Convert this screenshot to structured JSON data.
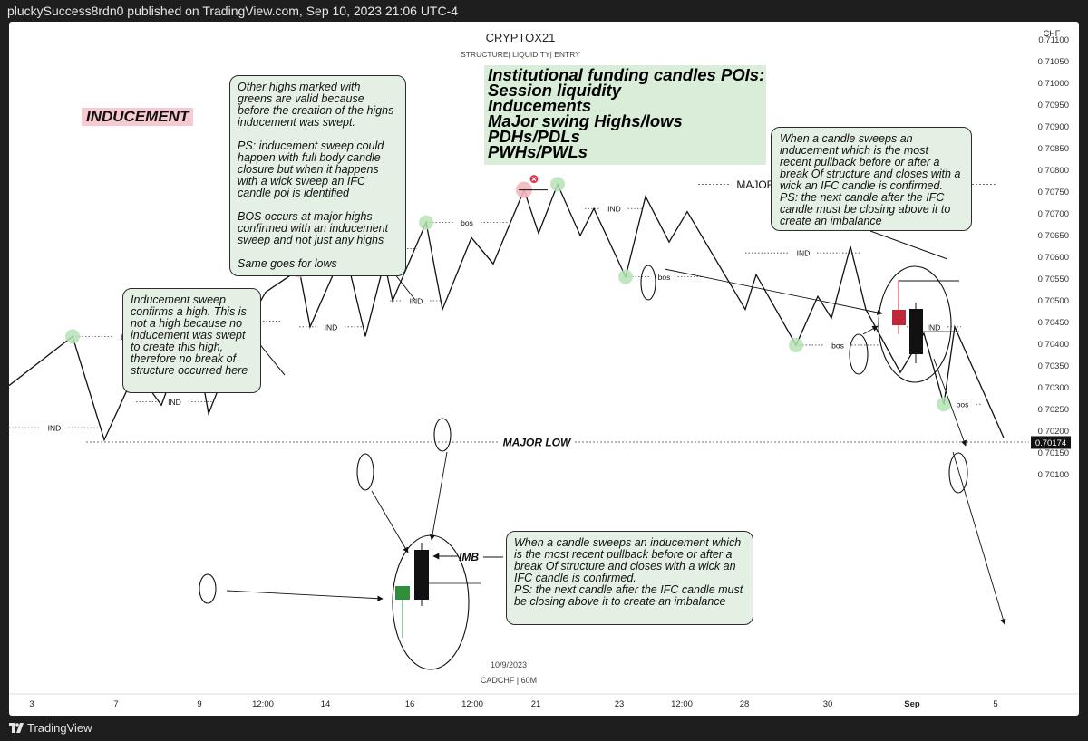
{
  "publish_line": "pluckySuccess8rdn0 published on TradingView.com, Sep 10, 2023 21:06 UTC-4",
  "footer": {
    "brand": "TradingView"
  },
  "chart_data": {
    "type": "line",
    "title": "CRYPTOX21",
    "subtitle": "STRUCTURE| LIQUIDITY| ENTRY",
    "symbol_label": "CADCHF | 60M",
    "date_label": "10/9/2023",
    "currency": "CHF",
    "last_price_label": "0.70174",
    "ylim": [
      0.70075,
      0.71125
    ],
    "y_ticks": [
      "0.71100",
      "0.71050",
      "0.71000",
      "0.70950",
      "0.70900",
      "0.70850",
      "0.70800",
      "0.70750",
      "0.70700",
      "0.70650",
      "0.70600",
      "0.70550",
      "0.70500",
      "0.70450",
      "0.70400",
      "0.70350",
      "0.70300",
      "0.70250",
      "0.70200",
      "0.70150",
      "0.70100"
    ],
    "x_ticks": [
      "3",
      "7",
      "9",
      "12:00",
      "14",
      "16",
      "12:00",
      "21",
      "23",
      "12:00",
      "28",
      "30",
      "Sep",
      "5"
    ],
    "series": [
      {
        "values": [
          {
            "x": 0,
            "y": 0.70305
          },
          {
            "x": 70,
            "y": 0.70418
          },
          {
            "x": 105,
            "y": 0.7018
          },
          {
            "x": 140,
            "y": 0.7034
          },
          {
            "x": 168,
            "y": 0.7026
          },
          {
            "x": 202,
            "y": 0.70453
          },
          {
            "x": 220,
            "y": 0.7024
          },
          {
            "x": 250,
            "y": 0.70398
          },
          {
            "x": 283,
            "y": 0.7052
          },
          {
            "x": 320,
            "y": 0.70572
          },
          {
            "x": 332,
            "y": 0.7044
          },
          {
            "x": 370,
            "y": 0.7062
          },
          {
            "x": 393,
            "y": 0.70418
          },
          {
            "x": 414,
            "y": 0.7059
          },
          {
            "x": 423,
            "y": 0.705
          },
          {
            "x": 460,
            "y": 0.7068
          },
          {
            "x": 478,
            "y": 0.7048
          },
          {
            "x": 510,
            "y": 0.70645
          },
          {
            "x": 534,
            "y": 0.70585
          },
          {
            "x": 568,
            "y": 0.70755
          },
          {
            "x": 584,
            "y": 0.70655
          },
          {
            "x": 605,
            "y": 0.70768
          },
          {
            "x": 630,
            "y": 0.7065
          },
          {
            "x": 645,
            "y": 0.70712
          },
          {
            "x": 680,
            "y": 0.70555
          },
          {
            "x": 702,
            "y": 0.7074
          },
          {
            "x": 728,
            "y": 0.70635
          },
          {
            "x": 748,
            "y": 0.70705
          },
          {
            "x": 812,
            "y": 0.7048
          },
          {
            "x": 824,
            "y": 0.7056
          },
          {
            "x": 868,
            "y": 0.70398
          },
          {
            "x": 892,
            "y": 0.7051
          },
          {
            "x": 907,
            "y": 0.7046
          },
          {
            "x": 928,
            "y": 0.70625
          },
          {
            "x": 945,
            "y": 0.7048
          },
          {
            "x": 983,
            "y": 0.70335
          },
          {
            "x": 1009,
            "y": 0.70425
          },
          {
            "x": 1031,
            "y": 0.70262
          },
          {
            "x": 1043,
            "y": 0.7044
          },
          {
            "x": 1097,
            "y": 0.70185
          }
        ]
      }
    ],
    "swing_points": [
      {
        "x": 70,
        "y": 0.70418,
        "kind": "valid"
      },
      {
        "x": 202,
        "y": 0.70453,
        "kind": "valid"
      },
      {
        "x": 320,
        "y": 0.70572,
        "kind": "invalid"
      },
      {
        "x": 370,
        "y": 0.7062,
        "kind": "valid"
      },
      {
        "x": 460,
        "y": 0.7068,
        "kind": "valid"
      },
      {
        "x": 568,
        "y": 0.70755,
        "kind": "invalid"
      },
      {
        "x": 605,
        "y": 0.70768,
        "kind": "valid"
      },
      {
        "x": 680,
        "y": 0.70555,
        "kind": "valid"
      },
      {
        "x": 868,
        "y": 0.70398,
        "kind": "valid"
      },
      {
        "x": 1031,
        "y": 0.70262,
        "kind": "valid"
      }
    ],
    "levels": [
      {
        "label": "bos",
        "x1": 70,
        "x2": 190,
        "y": 0.70418
      },
      {
        "label": "bos",
        "x1": 202,
        "x2": 300,
        "y": 0.70453
      },
      {
        "label": "bos",
        "x1": 370,
        "x2": 450,
        "y": 0.7062
      },
      {
        "label": "bos",
        "x1": 460,
        "x2": 550,
        "y": 0.7068
      },
      {
        "label": "bos",
        "x1": 680,
        "x2": 765,
        "y": 0.70555
      },
      {
        "label": "bos",
        "x1": 868,
        "x2": 960,
        "y": 0.70398
      },
      {
        "label": "bos",
        "x1": 1031,
        "x2": 1072,
        "y": 0.70262
      },
      {
        "label": "IND",
        "x1": 0,
        "x2": 100,
        "y": 0.70208
      },
      {
        "label": "IND",
        "x1": 140,
        "x2": 225,
        "y": 0.70268
      },
      {
        "label": "IND",
        "x1": 320,
        "x2": 390,
        "y": 0.7044
      },
      {
        "label": "IND",
        "x1": 420,
        "x2": 478,
        "y": 0.705
      },
      {
        "label": "IND",
        "x1": 635,
        "x2": 700,
        "y": 0.70712
      },
      {
        "label": "IND",
        "x1": 812,
        "x2": 940,
        "y": 0.7061
      },
      {
        "label": "IND",
        "x1": 990,
        "x2": 1050,
        "y": 0.7044
      },
      {
        "label": "MAJOR HIGH",
        "x1": 760,
        "x2": 1090,
        "y": 0.70768
      },
      {
        "label": "MAJOR LOW",
        "x1": 85,
        "x2": 1125,
        "y": 0.70175
      }
    ],
    "markers": {
      "imb": "IMB"
    }
  },
  "annotations": {
    "inducement_title": "INDUCEMENT",
    "poi_lines": [
      "Institutional funding candles POIs:",
      "Session liquidity",
      "Inducements",
      "MaJor swing Highs/lows",
      "PDHs/PDLs",
      "PWHs/PWLs"
    ],
    "note_left": "Inducement sweep confirms a high.  This is not a high  because no inducement was swept to create this high, therefore no break of structure occurred here",
    "note_top": "Other highs marked with greens are valid because before the creation of the highs inducement was swept.\n\nPS: inducement sweep could happen with full body candle closure but when it happens with a wick sweep an IFC candle poi is identified\n\n BOS occurs at major highs confirmed with an inducement sweep and not just any highs\n\nSame goes for lows",
    "note_right": "When a candle sweeps an inducement which is the most recent pullback before or after a break Of structure and closes with a wick an IFC candle is confirmed.\nPS: the next candle after the IFC candle must be closing above it to create an imbalance",
    "note_bottom": "When a candle sweeps an inducement which is the most recent pullback before or after a break Of structure and closes with a wick an IFC candle is confirmed.\nPS: the next candle after the IFC candle must be closing above it to create an imbalance"
  },
  "colors": {
    "line": "#111111",
    "green_dot": "#b6e3b6",
    "red_dot": "#f4b6bf",
    "red_x": "#e0384b",
    "bull_candle": "#2f8f3a",
    "bear_candle": "#c0283a",
    "price_tag": "#111111"
  }
}
